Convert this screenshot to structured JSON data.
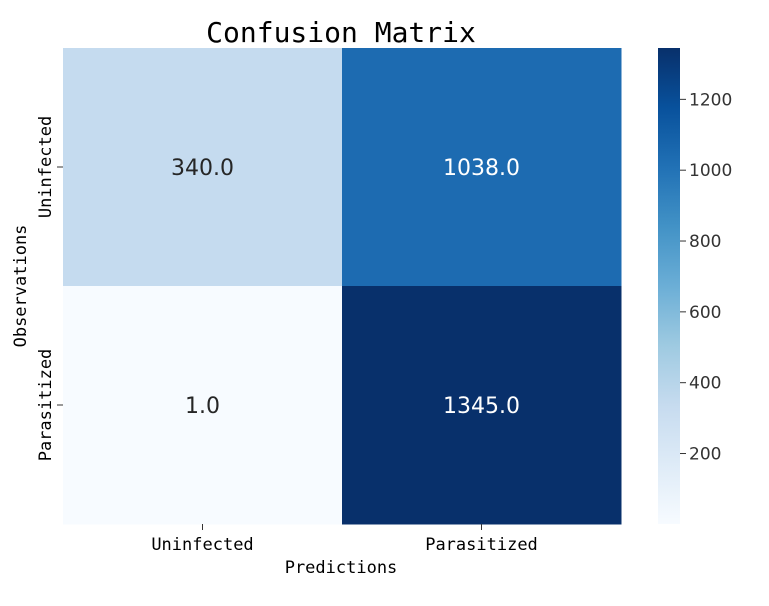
{
  "chart_data": {
    "type": "heatmap",
    "title": "Confusion Matrix",
    "xlabel": "Predictions",
    "ylabel": "Observations",
    "x_categories": [
      "Uninfected",
      "Parasitized"
    ],
    "y_categories": [
      "Uninfected",
      "Parasitized"
    ],
    "values": [
      [
        340.0,
        1038.0
      ],
      [
        1.0,
        1345.0
      ]
    ],
    "cell_labels": [
      [
        "340.0",
        "1038.0"
      ],
      [
        "1.0",
        "1345.0"
      ]
    ],
    "colormap": "Blues",
    "color_range": [
      1,
      1345
    ],
    "colorbar_ticks": [
      "200",
      "400",
      "600",
      "800",
      "1000",
      "1200"
    ],
    "colorbar_tick_values": [
      200,
      400,
      600,
      800,
      1000,
      1200
    ],
    "grid": false
  }
}
